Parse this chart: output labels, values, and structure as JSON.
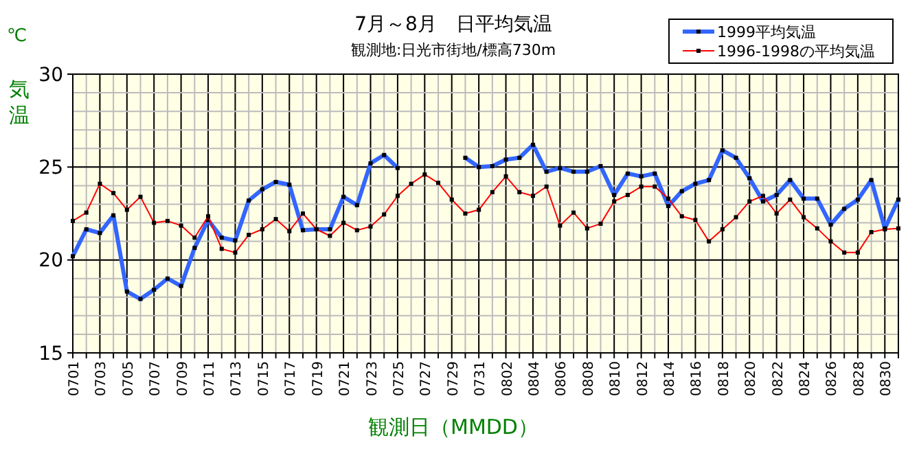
{
  "chart_data": {
    "type": "line",
    "title": "7月～8月　日平均気温",
    "subtitle": "観測地:日光市街地/標高730m",
    "xlabel": "観測日（MMDD）",
    "ylabel": "気温",
    "annotations": [
      "℃"
    ],
    "categories": [
      "0701",
      null,
      "0703",
      null,
      "0705",
      null,
      "0707",
      null,
      "0709",
      null,
      "0711",
      null,
      "0713",
      null,
      "0715",
      null,
      "0717",
      null,
      "0719",
      null,
      "0721",
      null,
      "0723",
      null,
      "0725",
      null,
      "0727",
      null,
      "0729",
      null,
      "0731",
      null,
      "0802",
      null,
      "0804",
      null,
      "0806",
      null,
      "0808",
      null,
      "0810",
      null,
      "0812",
      null,
      "0814",
      null,
      "0816",
      null,
      "0818",
      null,
      "0820",
      null,
      "0822",
      null,
      "0824",
      null,
      "0826",
      null,
      "0828",
      null,
      "0830",
      null
    ],
    "series": [
      {
        "name": "1999平均気温",
        "color": "#3366ff",
        "values": [
          20.2,
          21.65,
          21.45,
          22.4,
          18.3,
          17.9,
          18.4,
          19.0,
          18.6,
          20.65,
          22.15,
          21.2,
          21.05,
          23.2,
          23.8,
          24.2,
          24.05,
          21.6,
          21.65,
          21.65,
          23.4,
          22.95,
          25.2,
          25.65,
          24.95,
          null,
          null,
          null,
          null,
          25.5,
          25.0,
          25.05,
          25.4,
          25.5,
          26.2,
          24.75,
          24.95,
          24.75,
          24.75,
          25.05,
          23.5,
          24.65,
          24.5,
          24.65,
          22.9,
          23.7,
          24.1,
          24.3,
          25.9,
          25.5,
          24.4,
          23.15,
          23.5,
          24.3,
          23.3,
          23.3,
          21.9,
          22.75,
          23.25,
          24.3,
          21.7,
          23.25
        ]
      },
      {
        "name": "1996-1998の平均気温",
        "color": "#ff0000",
        "values": [
          22.1,
          22.55,
          24.1,
          23.6,
          22.7,
          23.4,
          22.0,
          22.1,
          21.85,
          21.2,
          22.35,
          20.6,
          20.4,
          21.35,
          21.65,
          22.2,
          21.55,
          22.5,
          21.65,
          21.3,
          22.0,
          21.6,
          21.8,
          22.45,
          23.45,
          24.1,
          24.6,
          24.15,
          23.25,
          22.5,
          22.7,
          23.65,
          24.5,
          23.65,
          23.45,
          23.95,
          21.85,
          22.55,
          21.7,
          21.95,
          23.15,
          23.5,
          23.95,
          23.95,
          23.3,
          22.35,
          22.15,
          21.0,
          21.65,
          22.3,
          23.15,
          23.45,
          22.5,
          23.25,
          22.3,
          21.7,
          21.0,
          20.4,
          20.4,
          21.5,
          21.65,
          21.7
        ]
      }
    ],
    "ylim": [
      15,
      30
    ],
    "yticks": [
      15,
      20,
      25,
      30
    ],
    "grid": true,
    "legend": "top right",
    "marker": "square",
    "line_style": "solid"
  }
}
